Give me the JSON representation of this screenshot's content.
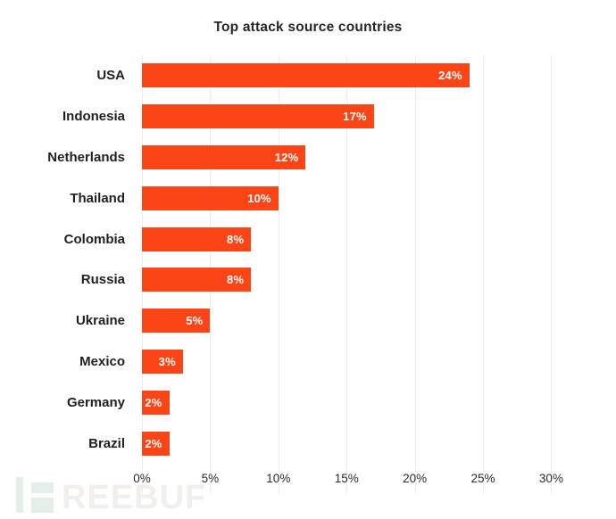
{
  "chart_data": {
    "type": "bar",
    "orientation": "horizontal",
    "title": "Top attack source countries",
    "categories": [
      "USA",
      "Indonesia",
      "Netherlands",
      "Thailand",
      "Colombia",
      "Russia",
      "Ukraine",
      "Mexico",
      "Germany",
      "Brazil"
    ],
    "values": [
      24,
      17,
      12,
      10,
      8,
      8,
      5,
      3,
      2,
      2
    ],
    "value_labels": [
      "24%",
      "17%",
      "12%",
      "10%",
      "8%",
      "8%",
      "5%",
      "3%",
      "2%",
      "2%"
    ],
    "xlabel": "",
    "ylabel": "",
    "x_ticks": [
      "0%",
      "5%",
      "10%",
      "15%",
      "20%",
      "25%",
      "30%"
    ],
    "x_tick_values": [
      0,
      5,
      10,
      15,
      20,
      25,
      30
    ],
    "xlim": [
      0,
      32
    ],
    "grid": "vertical-only",
    "legend": "none",
    "bar_color": "#fb4516",
    "value_label_color": "#ffffff",
    "gridline_color": "#ececec"
  },
  "watermark": {
    "text": "REEBUF",
    "full_name": "FREEBUF",
    "mark_color": "#e3efe8",
    "text_color": "#f0efec"
  }
}
